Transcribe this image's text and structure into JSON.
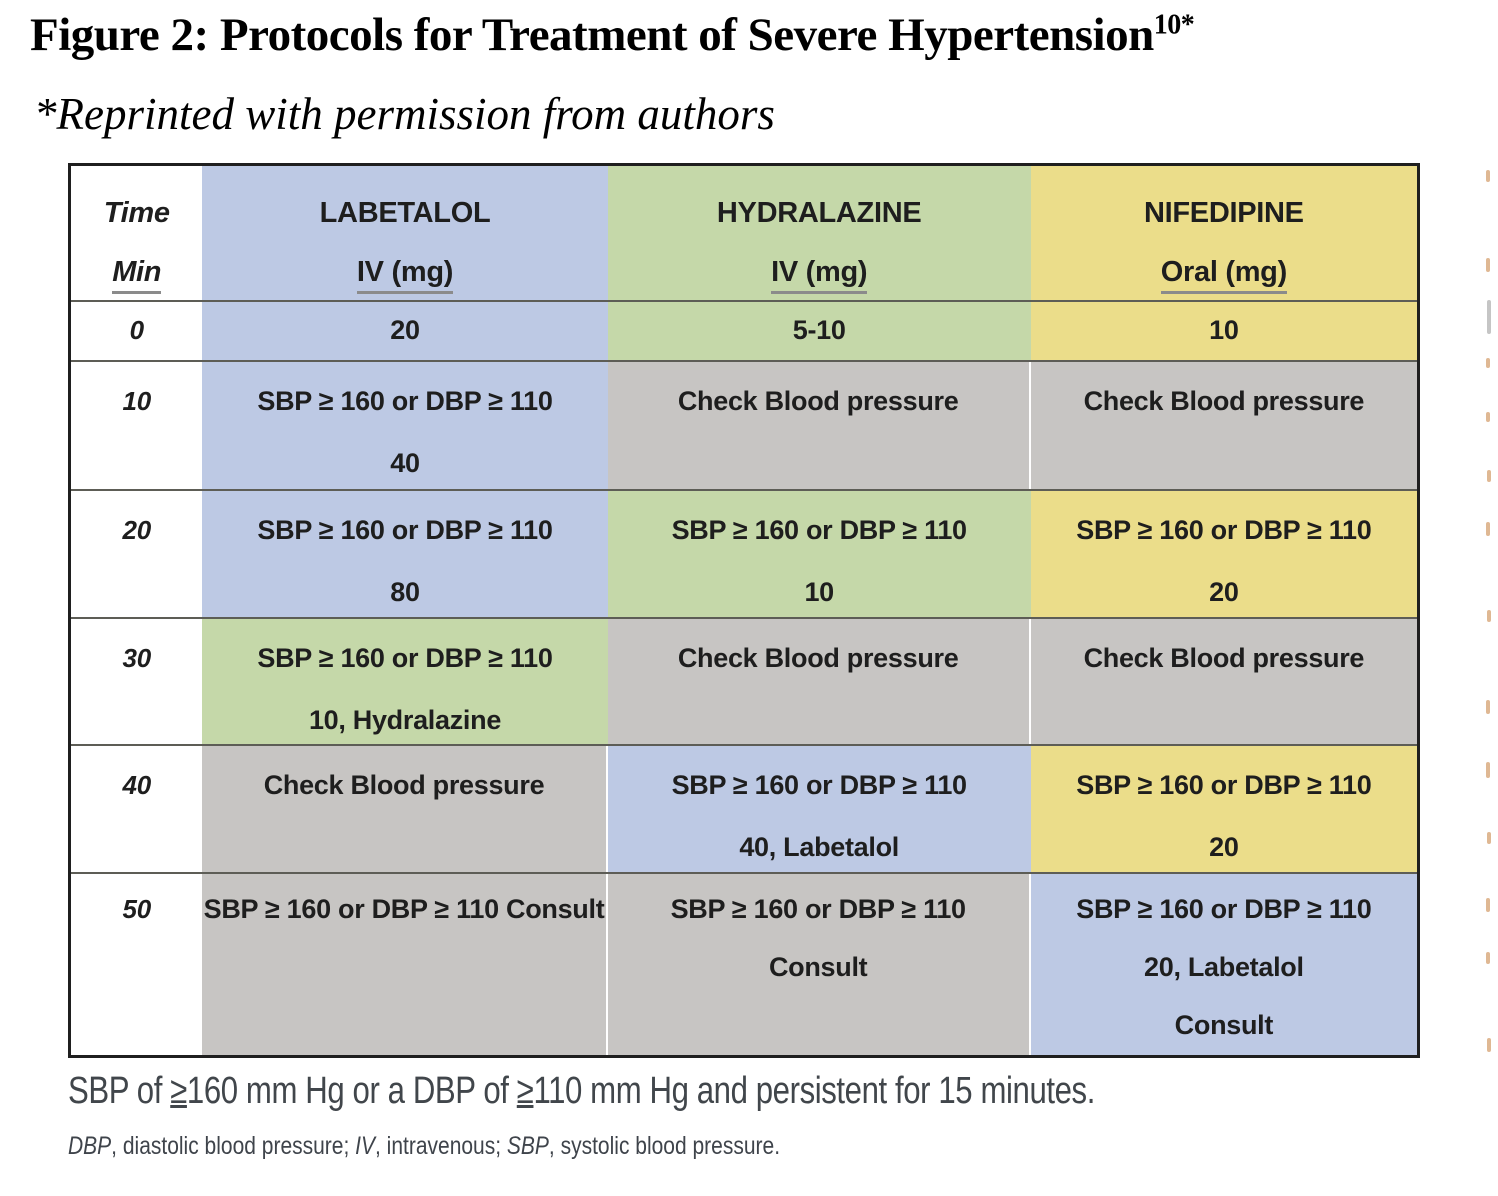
{
  "title": {
    "text": "Figure 2: Protocols for Treatment of Severe Hypertension",
    "superscript": "10*"
  },
  "subtitle": "*Reprinted with permission from authors",
  "colors": {
    "blue": "#bdc9e4",
    "green": "#c5d8a9",
    "yellow": "#ebdd8a",
    "gray": "#c7c5c3"
  },
  "table": {
    "header": {
      "time_label": "Time",
      "time_unit": "Min",
      "columns": [
        {
          "name": "LABETALOL",
          "route": "IV (mg)",
          "color": "blue"
        },
        {
          "name": "HYDRALAZINE",
          "route": "IV (mg)",
          "color": "green"
        },
        {
          "name": "NIFEDIPINE",
          "route": "Oral (mg)",
          "color": "yellow"
        }
      ]
    },
    "rows": [
      {
        "time": "0",
        "cells": [
          {
            "color": "blue",
            "lines": [
              "20"
            ]
          },
          {
            "color": "green",
            "lines": [
              "5-10"
            ]
          },
          {
            "color": "yellow",
            "lines": [
              "10"
            ]
          }
        ]
      },
      {
        "time": "10",
        "cells": [
          {
            "color": "blue",
            "lines": [
              "SBP ≥ 160 or DBP ≥ 110",
              "40"
            ]
          },
          {
            "color": "gray",
            "lines": [
              "Check Blood pressure"
            ]
          },
          {
            "color": "gray",
            "lines": [
              "Check Blood pressure"
            ]
          }
        ]
      },
      {
        "time": "20",
        "cells": [
          {
            "color": "blue",
            "lines": [
              "SBP ≥ 160 or DBP ≥ 110",
              "80"
            ]
          },
          {
            "color": "green",
            "lines": [
              "SBP ≥ 160 or DBP ≥ 110",
              "10"
            ]
          },
          {
            "color": "yellow",
            "lines": [
              "SBP ≥ 160 or DBP ≥ 110",
              "20"
            ]
          }
        ]
      },
      {
        "time": "30",
        "cells": [
          {
            "color": "green",
            "lines": [
              "SBP ≥ 160 or DBP ≥ 110",
              "10, Hydralazine"
            ]
          },
          {
            "color": "gray",
            "lines": [
              "Check Blood pressure"
            ]
          },
          {
            "color": "gray",
            "lines": [
              "Check Blood pressure"
            ]
          }
        ]
      },
      {
        "time": "40",
        "cells": [
          {
            "color": "gray",
            "lines": [
              "Check Blood pressure"
            ]
          },
          {
            "color": "blue",
            "lines": [
              "SBP ≥ 160 or DBP ≥ 110",
              "40, Labetalol"
            ]
          },
          {
            "color": "yellow",
            "lines": [
              "SBP ≥ 160 or DBP ≥ 110",
              "20"
            ]
          }
        ]
      },
      {
        "time": "50",
        "cells": [
          {
            "color": "gray",
            "lines": [
              "SBP ≥ 160 or DBP ≥ 110 Consult"
            ]
          },
          {
            "color": "gray",
            "lines": [
              "SBP ≥ 160 or DBP ≥ 110",
              "Consult"
            ]
          },
          {
            "color": "blue",
            "lines": [
              "SBP ≥ 160 or DBP ≥ 110",
              "20, Labetalol",
              "Consult"
            ]
          }
        ]
      }
    ]
  },
  "notes": {
    "criteria_segments": [
      {
        "text": "SBP of "
      },
      {
        "text": "≥",
        "underline": true
      },
      {
        "text": "160 mm Hg or a DBP of "
      },
      {
        "text": "≥",
        "underline": true
      },
      {
        "text": "110 mm Hg and persistent for 15 minutes."
      }
    ],
    "abbreviations": [
      {
        "abbr": "DBP",
        "text": ", diastolic blood pressure; "
      },
      {
        "abbr": "IV",
        "text": ", intravenous; "
      },
      {
        "abbr": "SBP",
        "text": ", systolic blood pressure."
      }
    ]
  }
}
